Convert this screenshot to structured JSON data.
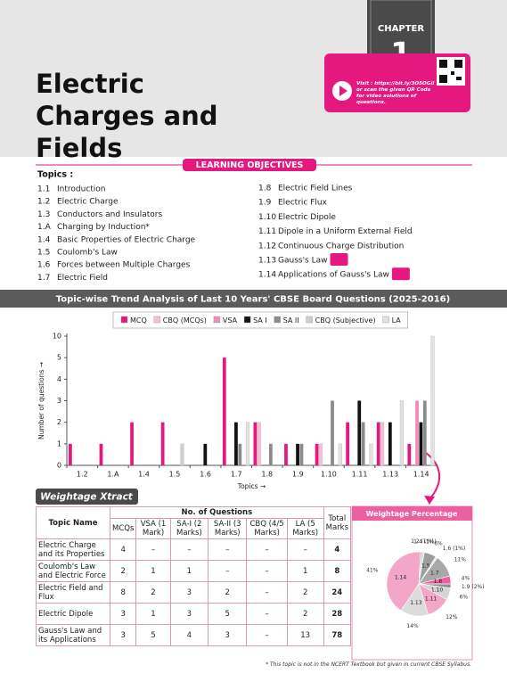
{
  "header": {
    "chapter_label": "CHAPTER",
    "chapter_number": "1",
    "title": "Electric Charges and Fields",
    "video_note": "Visit : https://bit.ly/3O5OGil or scan the given QR Code for video solutions of questions."
  },
  "learning_objectives": {
    "heading": "LEARNING OBJECTIVES",
    "topics_label": "Topics :",
    "topics": [
      {
        "num": "1.1",
        "text": "Introduction"
      },
      {
        "num": "1.2",
        "text": "Electric Charge"
      },
      {
        "num": "1.3",
        "text": "Conductors and Insulators"
      },
      {
        "num": "1.A",
        "text": "Charging by Induction*"
      },
      {
        "num": "1.4",
        "text": "Basic Properties of Electric Charge"
      },
      {
        "num": "1.5",
        "text": "Coulomb's Law"
      },
      {
        "num": "1.6",
        "text": "Forces between Multiple Charges"
      },
      {
        "num": "1.7",
        "text": "Electric Field"
      },
      {
        "num": "1.8",
        "text": "Electric Field Lines"
      },
      {
        "num": "1.9",
        "text": "Electric Flux"
      },
      {
        "num": "1.10",
        "text": "Electric Dipole"
      },
      {
        "num": "1.11",
        "text": "Dipole in a Uniform External Field"
      },
      {
        "num": "1.12",
        "text": "Continuous Charge Distribution"
      },
      {
        "num": "1.13",
        "text": "Gauss's Law"
      },
      {
        "num": "1.14",
        "text": "Applications of Gauss's Law"
      }
    ]
  },
  "trend_heading": "Topic-wise Trend Analysis of Last 10 Years' CBSE Board Questions (2025-2016)",
  "chart_data": [
    {
      "type": "bar",
      "x_label": "Topics →",
      "y_label": "Number of questions →",
      "categories": [
        "1.2",
        "1.A",
        "1.4",
        "1.5",
        "1.6",
        "1.7",
        "1.8",
        "1.9",
        "1.10",
        "1.11",
        "1.13",
        "1.14"
      ],
      "series": [
        {
          "name": "MCQ",
          "color": "#e4187f",
          "values": [
            1,
            1,
            2,
            2,
            null,
            5,
            2,
            1,
            1,
            2,
            2,
            1
          ]
        },
        {
          "name": "CBQ (MCQs)",
          "color": "#f6bfd8",
          "values": [
            null,
            null,
            null,
            null,
            null,
            null,
            2,
            null,
            1,
            null,
            2,
            null
          ]
        },
        {
          "name": "VSA",
          "color": "#f08cb8",
          "values": [
            null,
            null,
            null,
            null,
            null,
            null,
            null,
            null,
            null,
            null,
            null,
            3
          ]
        },
        {
          "name": "SA I",
          "color": "#111111",
          "values": [
            null,
            null,
            null,
            null,
            1,
            2,
            null,
            1,
            null,
            3,
            2,
            2
          ]
        },
        {
          "name": "SA II",
          "color": "#8a8a8a",
          "values": [
            null,
            null,
            null,
            null,
            null,
            1,
            1,
            1,
            3,
            2,
            null,
            3
          ]
        },
        {
          "name": "CBQ (Subjective)",
          "color": "#cfcfcf",
          "values": [
            null,
            null,
            null,
            1,
            null,
            null,
            null,
            null,
            null,
            null,
            null,
            null
          ]
        },
        {
          "name": "LA",
          "color": "#e2e2e2",
          "values": [
            null,
            null,
            null,
            null,
            null,
            2,
            null,
            null,
            1,
            1,
            3,
            10
          ]
        }
      ],
      "ylim": [
        0,
        10
      ],
      "yticks": [
        0,
        1,
        2,
        3,
        4,
        5,
        10
      ],
      "grid": false,
      "legend": "top"
    },
    {
      "type": "pie",
      "title": "Weightage Percentage",
      "categories": [
        "1.2",
        "1.4",
        "1.5",
        "1.6",
        "1.7",
        "1.8",
        "1.9",
        "1.10",
        "1.11",
        "1.13",
        "1.14"
      ],
      "values": [
        1,
        1,
        6,
        1,
        11,
        4,
        2,
        6,
        12,
        14,
        41
      ],
      "value_labels": [
        "(1%)",
        "(1%)",
        "6%",
        "(1%)",
        "11%",
        "4%",
        "(2%)",
        "6%",
        "12%",
        "14%",
        "41%"
      ],
      "colors": [
        "#bdbdbd",
        "#d9d9d9",
        "#9e9e9e",
        "#e8e8e8",
        "#a8a8a8",
        "#ec5fa0",
        "#8c8c8c",
        "#d4d4d4",
        "#f3a6c8",
        "#dcdcdc",
        "#f3a6c8"
      ]
    }
  ],
  "weightage": {
    "banner": "Weightage Xtract",
    "table": {
      "topic_header": "Topic Name",
      "group_header": "No. of Questions",
      "columns": [
        "MCQs",
        "VSA (1 Mark)",
        "SA-I (2 Marks)",
        "SA-II (3 Marks)",
        "CBQ (4/5 Marks)",
        "LA (5 Marks)",
        "Total Marks"
      ],
      "rows": [
        [
          "Electric Charge and its Properties",
          "4",
          "–",
          "–",
          "–",
          "–",
          "–",
          "4"
        ],
        [
          "Coulomb's Law and Electric Force",
          "2",
          "1",
          "1",
          "–",
          "–",
          "1",
          "8"
        ],
        [
          "Electric Field and Flux",
          "8",
          "2",
          "3",
          "2",
          "–",
          "2",
          "24"
        ],
        [
          "Electric Dipole",
          "3",
          "1",
          "3",
          "5",
          "–",
          "2",
          "28"
        ],
        [
          "Gauss's Law and its Applications",
          "3",
          "5",
          "4",
          "3",
          "–",
          "13",
          "78"
        ]
      ]
    }
  },
  "footnote": "* This topic is not in the NCERT Textbook but given in current CBSE Syllabus."
}
